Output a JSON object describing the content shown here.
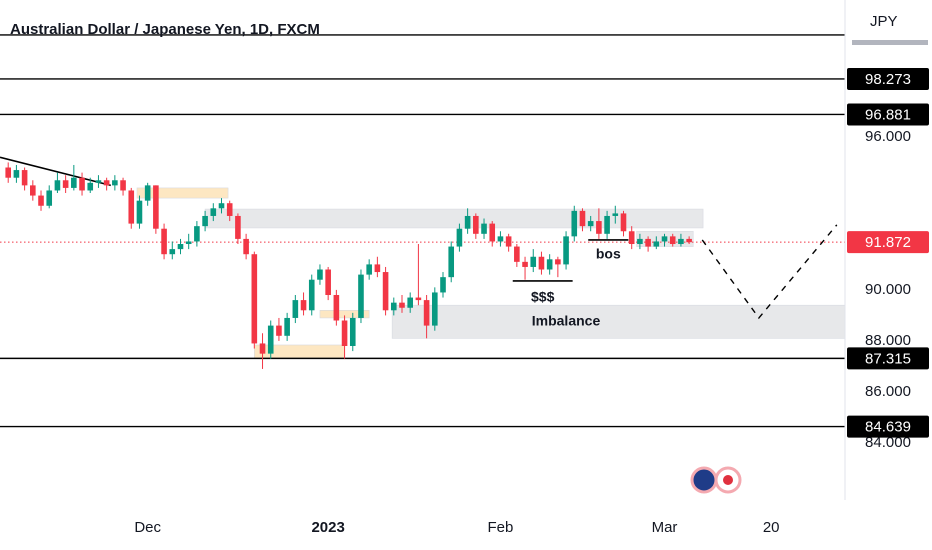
{
  "chart_data": {
    "type": "candlestick",
    "title": "Australian Dollar / Japanese Yen, 1D, FXCM",
    "currency": "JPY",
    "up_color": "#089981",
    "down_color": "#f23645",
    "xlim": [
      -1,
      102
    ],
    "ylim": [
      81.76,
      101.37
    ],
    "xticks": [
      {
        "value": 17,
        "label": "Dec"
      },
      {
        "value": 39,
        "label": "2023"
      },
      {
        "value": 60,
        "label": "Feb"
      },
      {
        "value": 80,
        "label": "Mar"
      },
      {
        "value": 93,
        "label": "20"
      }
    ],
    "yticks": [
      {
        "value": 96,
        "label": "96.000"
      },
      {
        "value": 90,
        "label": "90.000"
      },
      {
        "value": 88,
        "label": "88.000"
      },
      {
        "value": 86,
        "label": "86.000"
      },
      {
        "value": 84,
        "label": "84.000"
      }
    ],
    "open": [
      94.8,
      94.4,
      94.7,
      94.1,
      93.7,
      93.3,
      93.9,
      94.3,
      94.0,
      94.4,
      93.9,
      94.2,
      94.3,
      94.1,
      94.3,
      93.9,
      92.6,
      93.5,
      94.1,
      92.4,
      91.4,
      91.6,
      91.8,
      91.9,
      92.5,
      92.9,
      93.2,
      93.4,
      92.9,
      92.0,
      91.4,
      87.9,
      87.5,
      88.6,
      88.2,
      88.9,
      89.6,
      89.2,
      90.4,
      90.8,
      89.8,
      88.8,
      87.8,
      88.9,
      90.6,
      91.0,
      90.7,
      89.2,
      89.5,
      89.3,
      89.7,
      89.6,
      88.6,
      89.9,
      90.5,
      91.7,
      92.4,
      92.9,
      92.2,
      92.6,
      91.9,
      92.1,
      91.7,
      91.1,
      90.9,
      91.3,
      90.8,
      91.2,
      91.0,
      92.1,
      93.1,
      92.5,
      92.7,
      92.2,
      92.9,
      93.0,
      92.3,
      91.8,
      92.0,
      91.7,
      91.9,
      92.1,
      91.8,
      92.0
    ],
    "high": [
      95.0,
      94.9,
      94.8,
      94.3,
      93.9,
      94.1,
      94.6,
      94.5,
      94.9,
      94.6,
      94.4,
      94.5,
      94.4,
      94.5,
      94.4,
      94.0,
      93.7,
      94.2,
      94.1,
      92.6,
      91.9,
      92.0,
      92.2,
      92.7,
      93.1,
      93.4,
      93.6,
      93.5,
      93.0,
      92.2,
      91.5,
      88.3,
      88.8,
      88.9,
      89.1,
      89.8,
      89.9,
      90.6,
      91.0,
      90.9,
      90.0,
      89.0,
      89.1,
      90.8,
      91.2,
      91.3,
      90.9,
      89.7,
      89.8,
      89.9,
      91.8,
      89.8,
      90.1,
      90.7,
      91.9,
      92.6,
      93.2,
      93.0,
      92.8,
      92.7,
      92.3,
      92.2,
      91.8,
      91.3,
      91.6,
      91.5,
      91.4,
      91.3,
      92.3,
      93.3,
      93.2,
      92.9,
      93.2,
      93.1,
      93.3,
      93.1,
      92.5,
      92.2,
      92.1,
      92.1,
      92.2,
      92.2,
      92.2,
      92.1
    ],
    "low": [
      94.2,
      94.2,
      93.9,
      93.5,
      93.1,
      93.2,
      93.8,
      93.8,
      93.9,
      93.7,
      93.8,
      94.0,
      93.9,
      93.9,
      93.7,
      92.4,
      92.4,
      93.3,
      92.2,
      91.2,
      91.2,
      91.4,
      91.6,
      91.7,
      92.3,
      92.7,
      93.0,
      92.7,
      91.8,
      91.2,
      87.7,
      86.9,
      87.3,
      88.0,
      88.0,
      88.7,
      89.0,
      89.0,
      90.2,
      89.6,
      88.6,
      87.3,
      87.6,
      88.7,
      90.4,
      90.5,
      89.0,
      89.0,
      89.1,
      89.1,
      89.4,
      88.1,
      88.4,
      89.7,
      90.3,
      91.5,
      92.2,
      92.0,
      92.0,
      91.7,
      91.7,
      91.5,
      90.9,
      90.4,
      90.7,
      90.6,
      90.6,
      90.5,
      90.8,
      91.9,
      92.3,
      92.3,
      92.0,
      92.0,
      92.6,
      92.1,
      91.6,
      91.6,
      91.5,
      91.6,
      91.7,
      91.7,
      91.7,
      91.8
    ],
    "close": [
      94.4,
      94.7,
      94.1,
      93.7,
      93.3,
      93.9,
      94.3,
      94.0,
      94.4,
      93.9,
      94.2,
      94.3,
      94.1,
      94.3,
      93.9,
      92.6,
      93.5,
      94.1,
      92.4,
      91.4,
      91.6,
      91.8,
      91.9,
      92.5,
      92.9,
      93.2,
      93.4,
      92.9,
      92.0,
      91.4,
      87.9,
      87.5,
      88.6,
      88.2,
      88.9,
      89.6,
      89.2,
      90.4,
      90.8,
      89.8,
      88.8,
      87.8,
      88.9,
      90.6,
      91.0,
      90.7,
      89.2,
      89.5,
      89.3,
      89.7,
      89.6,
      88.6,
      89.9,
      90.5,
      91.7,
      92.4,
      92.9,
      92.2,
      92.6,
      91.9,
      92.1,
      91.7,
      91.1,
      90.9,
      91.3,
      90.8,
      91.2,
      91.0,
      92.1,
      93.1,
      92.5,
      92.7,
      92.2,
      92.9,
      93.0,
      92.3,
      91.8,
      92.0,
      91.7,
      91.9,
      92.1,
      91.8,
      92.0,
      91.87
    ],
    "upper_line": 100.0,
    "levels": [
      {
        "value": 98.273,
        "label": "98.273"
      },
      {
        "value": 96.881,
        "label": "96.881"
      },
      {
        "value": 87.315,
        "label": "87.315"
      },
      {
        "value": 84.639,
        "label": "84.639"
      }
    ],
    "last_price": {
      "value": 91.872,
      "label": "91.872",
      "color": "#f23645"
    },
    "zones": [
      {
        "x": [
          15.7,
          26.8
        ],
        "y": [
          93.6,
          94.0
        ],
        "color": "#fde3b8"
      },
      {
        "x": [
          24,
          84.7
        ],
        "y": [
          92.43,
          93.17
        ],
        "color": "#e3e4e7"
      },
      {
        "x": [
          76.6,
          83.5
        ],
        "y": [
          91.7,
          92.3
        ],
        "color": "#e3e4e7"
      },
      {
        "x": [
          46.8,
          102
        ],
        "y": [
          88.1,
          89.4
        ],
        "color": "#e3e4e7"
      },
      {
        "x": [
          38,
          44
        ],
        "y": [
          88.9,
          89.2
        ],
        "color": "#fde3b8"
      },
      {
        "x": [
          30,
          41
        ],
        "y": [
          87.33,
          87.84
        ],
        "color": "#fde3b8"
      }
    ],
    "trend_line": {
      "x": [
        -1,
        12.5
      ],
      "y": [
        95.2,
        94.1
      ]
    },
    "liquidity_line": {
      "x": [
        61.5,
        68.8
      ],
      "y": [
        90.35,
        90.35
      ],
      "label": "$$$"
    },
    "bos_line": {
      "x": [
        70.7,
        75.6
      ],
      "y": [
        91.96,
        91.96
      ],
      "label": "bos"
    },
    "imbalance_label": "Imbalance",
    "projection": {
      "x": [
        84.6,
        91.5,
        101
      ],
      "y": [
        91.96,
        88.9,
        92.55
      ]
    }
  }
}
